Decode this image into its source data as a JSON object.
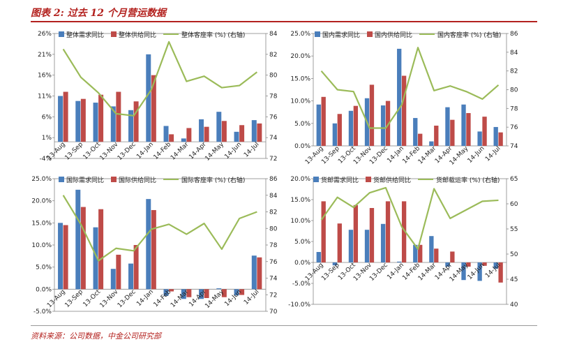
{
  "figure": {
    "title": "图表 2: 过去 12 个月营运数据",
    "source": "资料来源：公司数据，中金公司研究部"
  },
  "colors": {
    "demand": "#4a7ebb",
    "supply": "#be4b48",
    "load": "#9bbb59"
  },
  "chart_data": [
    {
      "type": "bar",
      "categories": [
        "13-Aug",
        "13-Sep",
        "13-Oct",
        "13-Nov",
        "13-Dec",
        "14-Jan",
        "14-Feb",
        "14-Mar",
        "14-Apr",
        "14-May",
        "14-Jun",
        "14-Jul"
      ],
      "series": [
        {
          "name": "整体需求同比",
          "type": "bar",
          "axis": "left",
          "values": [
            11.0,
            9.8,
            9.4,
            8.5,
            7.6,
            21.0,
            3.8,
            0.8,
            5.4,
            7.2,
            2.4,
            5.2
          ]
        },
        {
          "name": "整体供给同比",
          "type": "bar",
          "axis": "left",
          "values": [
            12.0,
            10.3,
            11.3,
            12.0,
            9.7,
            16.0,
            1.8,
            3.3,
            3.6,
            5.0,
            4.0,
            4.4
          ]
        },
        {
          "name": "整体客座率 (%) (右轴)",
          "type": "line",
          "axis": "right",
          "values": [
            82.5,
            79.8,
            78.3,
            76.3,
            76.1,
            78.6,
            83.2,
            79.4,
            79.9,
            78.8,
            79.0,
            80.3
          ]
        }
      ],
      "yLeft": {
        "min": -4,
        "max": 26,
        "ticks": [
          "-4%",
          "1%",
          "6%",
          "11%",
          "16%",
          "21%",
          "26%"
        ]
      },
      "yRight": {
        "min": 72,
        "max": 84,
        "ticks": [
          "72",
          "74",
          "76",
          "78",
          "80",
          "82",
          "84"
        ]
      }
    },
    {
      "type": "bar",
      "categories": [
        "13-Aug",
        "13-Sep",
        "13-Oct",
        "13-Nov",
        "13-Dec",
        "14-Jan",
        "14-Feb",
        "14-Mar",
        "14-Apr",
        "14-May",
        "14-Jun",
        "14-Jul"
      ],
      "series": [
        {
          "name": "国内需求同比",
          "type": "bar",
          "axis": "left",
          "values": [
            9.2,
            5.0,
            7.8,
            10.6,
            9.0,
            21.6,
            6.2,
            1.0,
            8.6,
            9.2,
            3.2,
            4.2
          ]
        },
        {
          "name": "国内供给同比",
          "type": "bar",
          "axis": "left",
          "values": [
            10.9,
            7.1,
            8.9,
            13.6,
            10.0,
            15.6,
            2.7,
            4.5,
            5.8,
            7.3,
            6.5,
            3.0
          ]
        },
        {
          "name": "国内客座率 (%) (右轴)",
          "type": "line",
          "axis": "right",
          "values": [
            82.0,
            80.0,
            79.8,
            75.9,
            75.9,
            78.4,
            84.5,
            79.9,
            80.4,
            79.8,
            79.0,
            80.5
          ]
        }
      ],
      "yLeft": {
        "min": 0,
        "max": 25,
        "ticks": [
          "0.0%",
          "5.0%",
          "10.0%",
          "15.0%",
          "20.0%",
          "25.0%"
        ]
      },
      "yRight": {
        "min": 74,
        "max": 86,
        "ticks": [
          "74",
          "76",
          "78",
          "80",
          "82",
          "84",
          "86"
        ]
      }
    },
    {
      "type": "bar",
      "categories": [
        "13-Aug",
        "13-Sep",
        "13-Oct",
        "13-Nov",
        "13-Dec",
        "14-Jan",
        "14-Feb",
        "14-Mar",
        "14-Apr",
        "14-May",
        "14-Jun",
        "14-Jul"
      ],
      "series": [
        {
          "name": "国际需求同比",
          "type": "bar",
          "axis": "left",
          "values": [
            15.0,
            22.5,
            14.0,
            4.6,
            5.8,
            20.4,
            -1.5,
            -2.2,
            -2.2,
            0.2,
            -1.4,
            7.6
          ]
        },
        {
          "name": "国际供给同比",
          "type": "bar",
          "axis": "left",
          "values": [
            14.5,
            18.6,
            18.1,
            7.8,
            10.0,
            17.9,
            -0.5,
            -1.8,
            -2.0,
            -1.8,
            -1.3,
            7.2
          ]
        },
        {
          "name": "国际客座率 (%) (右轴)",
          "type": "line",
          "axis": "right",
          "values": [
            84.0,
            80.5,
            76.1,
            77.6,
            77.3,
            79.9,
            80.5,
            79.3,
            80.6,
            77.5,
            81.2,
            82.0
          ]
        }
      ],
      "yLeft": {
        "min": -5,
        "max": 25,
        "ticks": [
          "-5.0%",
          "0.0%",
          "5.0%",
          "10.0%",
          "15.0%",
          "20.0%",
          "25.0%"
        ]
      },
      "yRight": {
        "min": 70,
        "max": 86,
        "ticks": [
          "70",
          "72",
          "74",
          "76",
          "78",
          "80",
          "82",
          "84",
          "86"
        ]
      }
    },
    {
      "type": "bar",
      "categories": [
        "13-Aug",
        "13-Sep",
        "13-Oct",
        "13-Nov",
        "13-Dec",
        "14-Jan",
        "14-Feb",
        "14-Mar",
        "14-Apr",
        "14-May",
        "14-Jun",
        "14-Jul"
      ],
      "series": [
        {
          "name": "货邮需求同比",
          "type": "bar",
          "axis": "left",
          "values": [
            2.5,
            -0.7,
            7.8,
            7.8,
            9.2,
            0.2,
            4.2,
            6.3,
            -1.0,
            -4.2,
            -4.4,
            -1.5
          ]
        },
        {
          "name": "货邮供给同比",
          "type": "bar",
          "axis": "left",
          "values": [
            14.6,
            9.3,
            13.7,
            13.0,
            14.6,
            14.6,
            4.2,
            3.3,
            2.6,
            -1.0,
            -0.8,
            -4.8
          ]
        },
        {
          "name": "货邮载运率 (%) (右轴)",
          "type": "line",
          "axis": "right",
          "values": [
            56.8,
            61.3,
            59.3,
            62.2,
            63.2,
            55.4,
            51.0,
            63.0,
            57.1,
            58.8,
            60.5,
            60.7
          ]
        }
      ],
      "yLeft": {
        "min": -10,
        "max": 20,
        "ticks": [
          "-10.0%",
          "-5.0%",
          "0.0%",
          "5.0%",
          "10.0%",
          "15.0%",
          "20.0%"
        ]
      },
      "yRight": {
        "min": 40,
        "max": 65,
        "ticks": [
          "40",
          "45",
          "50",
          "55",
          "60",
          "65"
        ]
      }
    }
  ]
}
